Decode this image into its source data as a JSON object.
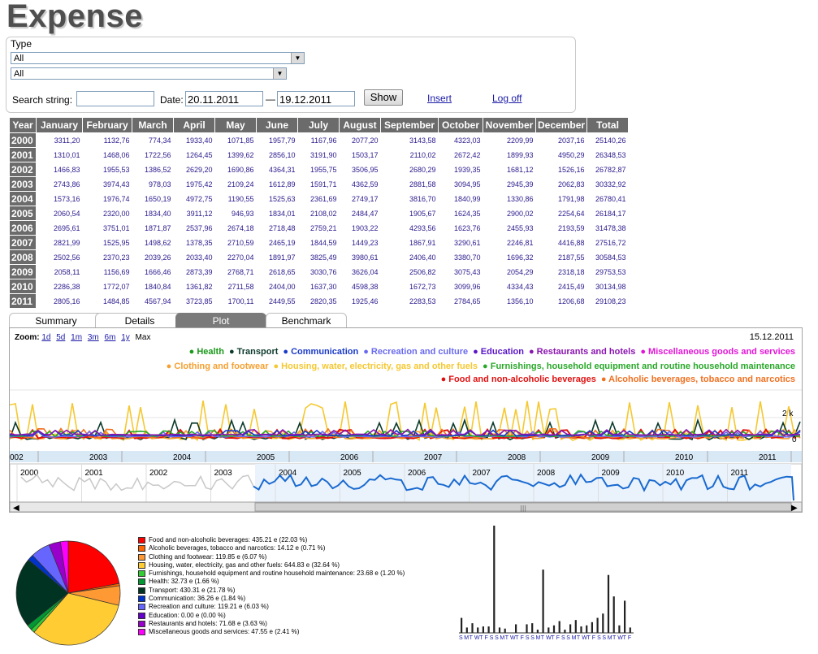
{
  "app": {
    "title": "Expense"
  },
  "filters": {
    "type_label": "Type",
    "type_select_1": "All",
    "type_select_2": "All",
    "search_label": "Search string:",
    "search_value": "",
    "date_label": "Date:",
    "date_from": "20.11.2011",
    "date_sep": "—",
    "date_to": "19.12.2011",
    "show_button": "Show",
    "insert_link": "Insert",
    "logoff_link": "Log off"
  },
  "table": {
    "headers": [
      "Year",
      "January",
      "February",
      "March",
      "April",
      "May",
      "June",
      "July",
      "August",
      "September",
      "October",
      "November",
      "December",
      "Total"
    ],
    "rows": [
      [
        "2000",
        "3311,20",
        "1132,76",
        "774,34",
        "1933,40",
        "1071,85",
        "1957,79",
        "1167,96",
        "2077,20",
        "3143,58",
        "4323,03",
        "2209,99",
        "2037,16",
        "25140,26"
      ],
      [
        "2001",
        "1310,01",
        "1468,06",
        "1722,56",
        "1264,45",
        "1399,62",
        "2856,10",
        "3191,90",
        "1503,17",
        "2110,02",
        "2672,42",
        "1899,93",
        "4950,29",
        "26348,53"
      ],
      [
        "2002",
        "1466,83",
        "1955,53",
        "1386,52",
        "2629,20",
        "1690,86",
        "4364,31",
        "1955,75",
        "3506,95",
        "2680,29",
        "1939,35",
        "1681,12",
        "1526,16",
        "26782,87"
      ],
      [
        "2003",
        "2743,86",
        "3974,43",
        "978,03",
        "1975,42",
        "2109,24",
        "1612,89",
        "1591,71",
        "4362,59",
        "2881,58",
        "3094,95",
        "2945,39",
        "2062,83",
        "30332,92"
      ],
      [
        "2004",
        "1573,16",
        "1976,74",
        "1650,19",
        "4972,75",
        "1190,55",
        "1525,63",
        "2361,69",
        "2749,17",
        "3816,70",
        "1840,99",
        "1330,86",
        "1791,98",
        "26780,41"
      ],
      [
        "2005",
        "2060,54",
        "2320,00",
        "1834,40",
        "3911,12",
        "946,93",
        "1834,01",
        "2108,02",
        "2484,47",
        "1905,67",
        "1624,35",
        "2900,02",
        "2254,64",
        "26184,17"
      ],
      [
        "2006",
        "2695,61",
        "3751,01",
        "1871,87",
        "2537,96",
        "2674,18",
        "2718,48",
        "2759,21",
        "1903,22",
        "4293,56",
        "1623,76",
        "2455,93",
        "2193,59",
        "31478,38"
      ],
      [
        "2007",
        "2821,99",
        "1525,95",
        "1498,62",
        "1378,35",
        "2710,59",
        "2465,19",
        "1844,59",
        "1449,23",
        "1867,91",
        "3290,61",
        "2246,81",
        "4416,88",
        "27516,72"
      ],
      [
        "2008",
        "2502,56",
        "2370,23",
        "2039,26",
        "2033,40",
        "2270,04",
        "1891,97",
        "3825,49",
        "3980,61",
        "2406,40",
        "3380,70",
        "1696,32",
        "2187,55",
        "30584,53"
      ],
      [
        "2009",
        "2058,11",
        "1156,69",
        "1666,46",
        "2873,39",
        "2768,71",
        "2618,65",
        "3030,76",
        "3626,04",
        "2506,82",
        "3075,43",
        "2054,29",
        "2318,18",
        "29753,53"
      ],
      [
        "2010",
        "2286,38",
        "1772,07",
        "1840,84",
        "1361,82",
        "2711,58",
        "2404,00",
        "1637,30",
        "4598,38",
        "1672,73",
        "3099,96",
        "4334,43",
        "2415,49",
        "30134,98"
      ],
      [
        "2011",
        "2805,16",
        "1484,85",
        "4567,94",
        "3723,85",
        "1700,11",
        "2449,55",
        "2820,35",
        "1925,46",
        "2283,53",
        "2784,65",
        "1356,10",
        "1206,68",
        "29108,23"
      ]
    ]
  },
  "tabs": [
    "Summary",
    "Details",
    "Plot",
    "Benchmark"
  ],
  "active_tab": "Plot",
  "plot": {
    "zoom_label": "Zoom:",
    "zoom_options": [
      "1d",
      "5d",
      "1m",
      "3m",
      "6m",
      "1y",
      "Max"
    ],
    "current_date": "15.12.2011",
    "y_label_2k": "2 k",
    "y_label_0": "0",
    "main_axis_years": [
      "002",
      "2003",
      "2004",
      "2005",
      "2006",
      "2007",
      "2008",
      "2009",
      "2010",
      "2011"
    ],
    "nav_axis_years": [
      "2000",
      "2001",
      "2002",
      "2003",
      "2004",
      "2005",
      "2006",
      "2007",
      "2008",
      "2009",
      "2010",
      "2011"
    ],
    "legend_rows": [
      [
        {
          "label": "Health",
          "color": "#1a9a1a"
        },
        {
          "label": "Transport",
          "color": "#0c3a2c"
        },
        {
          "label": "Communication",
          "color": "#1a3ac8"
        },
        {
          "label": "Recreation and culture",
          "color": "#6a6af0"
        },
        {
          "label": "Education",
          "color": "#5a14c8"
        },
        {
          "label": "Restaurants and hotels",
          "color": "#8a14b0"
        },
        {
          "label": "Miscellaneous goods and services",
          "color": "#e414d8"
        }
      ],
      [
        {
          "label": "Clothing and footwear",
          "color": "#f5a030"
        },
        {
          "label": "Housing, water, electricity, gas and other fuels",
          "color": "#f5c830"
        },
        {
          "label": "Furnishings, household equipment and routine household maintenance",
          "color": "#28a828"
        }
      ],
      [
        {
          "label": "Food and non-alcoholic beverages",
          "color": "#e01010"
        },
        {
          "label": "Alcoholic beverages, tobacco and narcotics",
          "color": "#f07020"
        }
      ]
    ]
  },
  "breakdown": [
    {
      "label": "Food and non-alcoholic beverages: 435.21 e (22.03 %)",
      "color": "#ff0000",
      "value": 22.03
    },
    {
      "label": "Alcoholic beverages, tobacco and narcotics: 14.12 e (0.71 %)",
      "color": "#ff6600",
      "value": 0.71
    },
    {
      "label": "Clothing and footwear: 119.85 e (6.07 %)",
      "color": "#ff9933",
      "value": 6.07
    },
    {
      "label": "Housing, water, electricity, gas and other fuels: 644.83 e (32.64 %)",
      "color": "#ffcc33",
      "value": 32.64
    },
    {
      "label": "Furnishings, household equipment and routine household maintenance: 23.68 e (1.20 %)",
      "color": "#33cc33",
      "value": 1.2
    },
    {
      "label": "Health: 32.73 e (1.66 %)",
      "color": "#009933",
      "value": 1.66
    },
    {
      "label": "Transport: 430.31 e (21.78 %)",
      "color": "#003322",
      "value": 21.78
    },
    {
      "label": "Communication: 36.26 e (1.84 %)",
      "color": "#0033cc",
      "value": 1.84
    },
    {
      "label": "Recreation and culture: 119.21 e (6.03 %)",
      "color": "#6666ff",
      "value": 6.03
    },
    {
      "label": "Education: 0.00 e (0.00 %)",
      "color": "#6600cc",
      "value": 0.0
    },
    {
      "label": "Restaurants and hotels: 71.68 e (3.63 %)",
      "color": "#9900cc",
      "value": 3.63
    },
    {
      "label": "Miscellaneous goods and services: 47.55 e (2.41 %)",
      "color": "#ff00ff",
      "value": 2.41
    }
  ],
  "daily_bars": {
    "values": [
      0.14,
      0.05,
      0.09,
      0.05,
      0.06,
      0.06,
      1.0,
      0.05,
      0.04,
      0.0,
      0.08,
      0.0,
      0.08,
      0.09,
      0.03,
      0.59,
      0.05,
      0.07,
      0.11,
      0.03,
      0.08,
      0.12,
      0.06,
      0.07,
      0.1,
      0.14,
      0.18,
      0.54,
      0.34,
      0.07,
      0.3,
      0.05
    ],
    "day_letters": "SMTWTFSSMTWTFSSMTWTFSSMTWTFSSMTWTFSSM"
  }
}
